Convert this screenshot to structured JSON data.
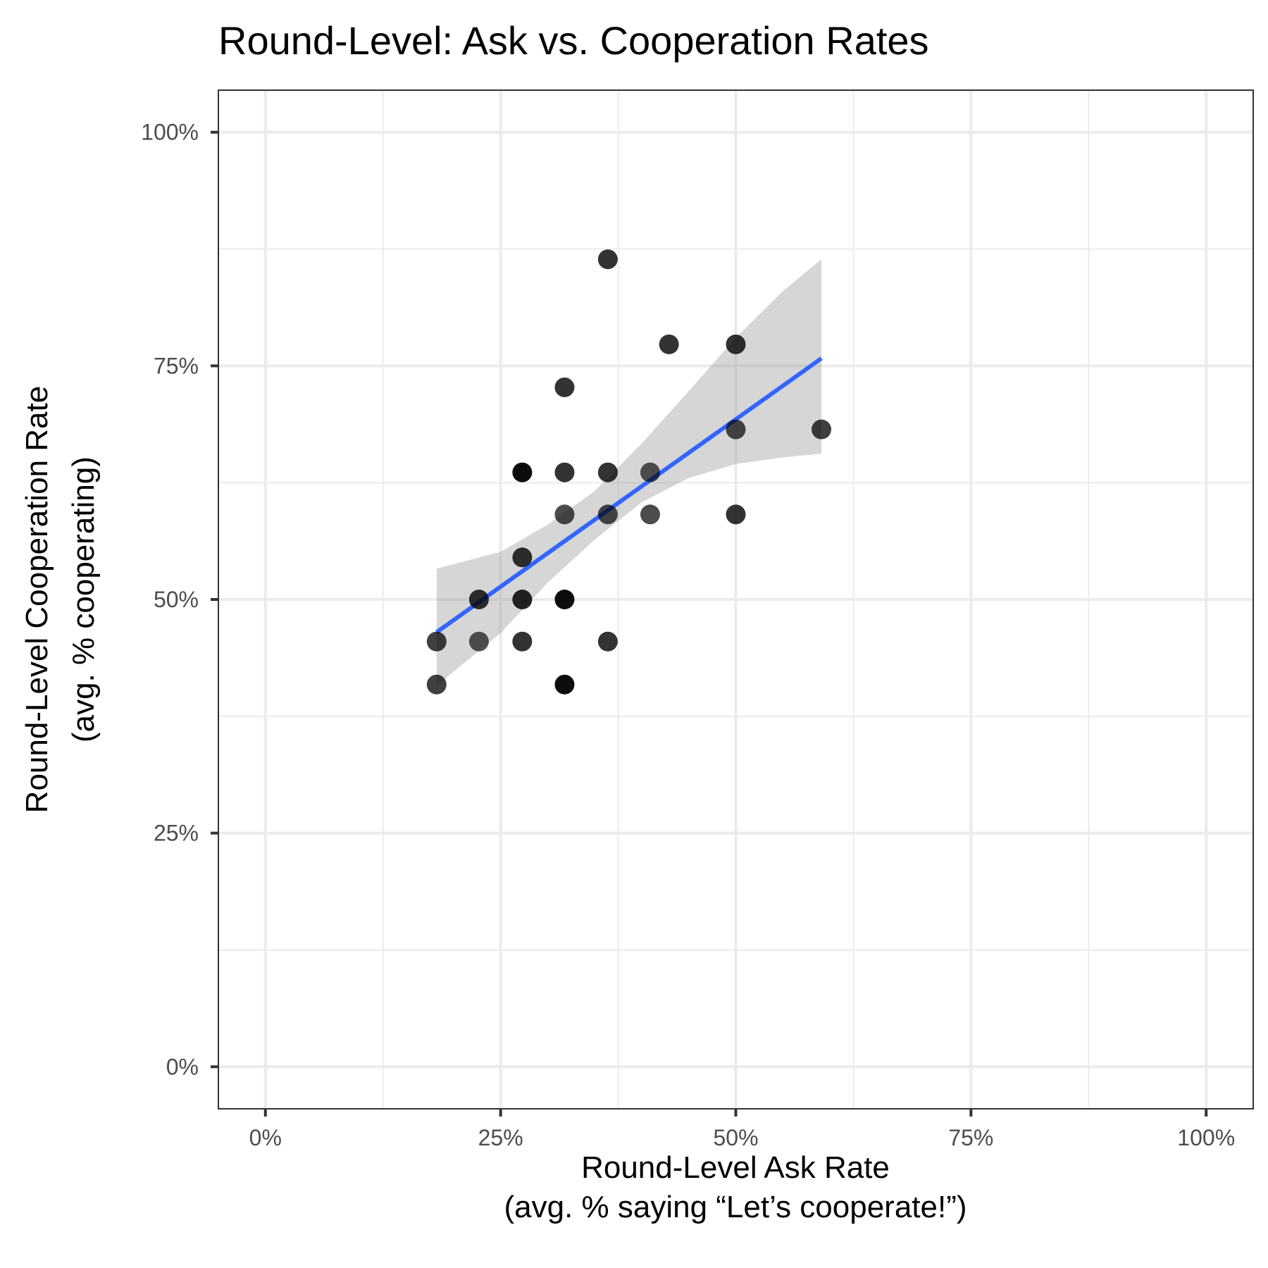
{
  "chart_data": {
    "type": "scatter",
    "title": "Round-Level: Ask vs. Cooperation Rates",
    "xlabel": [
      "Round-Level Ask Rate",
      "(avg. % saying “Let’s cooperate!”)"
    ],
    "ylabel": [
      "Round-Level Cooperation Rate",
      "(avg. % cooperating)"
    ],
    "xlim": [
      -0.05,
      1.05
    ],
    "ylim": [
      -0.045,
      1.045
    ],
    "x_ticks": [
      0,
      0.25,
      0.5,
      0.75,
      1
    ],
    "x_tick_labels": [
      "0%",
      "25%",
      "50%",
      "75%",
      "100%"
    ],
    "y_ticks": [
      0,
      0.25,
      0.5,
      0.75,
      1
    ],
    "y_tick_labels": [
      "0%",
      "25%",
      "50%",
      "75%",
      "100%"
    ],
    "grid": true,
    "legend": "none",
    "points": [
      {
        "x": 0.182,
        "y": 0.455,
        "opacity": 0.75
      },
      {
        "x": 0.182,
        "y": 0.409,
        "opacity": 0.75
      },
      {
        "x": 0.227,
        "y": 0.5,
        "opacity": 0.8
      },
      {
        "x": 0.227,
        "y": 0.455,
        "opacity": 0.65
      },
      {
        "x": 0.273,
        "y": 0.636,
        "opacity": 0.95
      },
      {
        "x": 0.273,
        "y": 0.545,
        "opacity": 0.8
      },
      {
        "x": 0.273,
        "y": 0.5,
        "opacity": 0.85
      },
      {
        "x": 0.273,
        "y": 0.455,
        "opacity": 0.8
      },
      {
        "x": 0.318,
        "y": 0.727,
        "opacity": 0.8
      },
      {
        "x": 0.318,
        "y": 0.636,
        "opacity": 0.8
      },
      {
        "x": 0.318,
        "y": 0.591,
        "opacity": 0.7
      },
      {
        "x": 0.318,
        "y": 0.5,
        "opacity": 0.95
      },
      {
        "x": 0.318,
        "y": 0.409,
        "opacity": 0.95
      },
      {
        "x": 0.364,
        "y": 0.864,
        "opacity": 0.8
      },
      {
        "x": 0.364,
        "y": 0.636,
        "opacity": 0.8
      },
      {
        "x": 0.364,
        "y": 0.591,
        "opacity": 0.7
      },
      {
        "x": 0.364,
        "y": 0.455,
        "opacity": 0.8
      },
      {
        "x": 0.409,
        "y": 0.636,
        "opacity": 0.65
      },
      {
        "x": 0.409,
        "y": 0.591,
        "opacity": 0.7
      },
      {
        "x": 0.429,
        "y": 0.773,
        "opacity": 0.8
      },
      {
        "x": 0.5,
        "y": 0.773,
        "opacity": 0.8
      },
      {
        "x": 0.5,
        "y": 0.682,
        "opacity": 0.7
      },
      {
        "x": 0.5,
        "y": 0.591,
        "opacity": 0.8
      },
      {
        "x": 0.591,
        "y": 0.682,
        "opacity": 0.75
      }
    ],
    "fit_line": {
      "method": "linear regression",
      "x": [
        0.182,
        0.591
      ],
      "y": [
        0.465,
        0.758
      ],
      "color": "#3366FF"
    },
    "confidence_band": {
      "x": [
        0.182,
        0.25,
        0.3,
        0.35,
        0.4,
        0.45,
        0.5,
        0.55,
        0.591
      ],
      "upper": [
        0.533,
        0.551,
        0.58,
        0.616,
        0.667,
        0.723,
        0.78,
        0.83,
        0.864
      ],
      "lower": [
        0.408,
        0.464,
        0.518,
        0.564,
        0.604,
        0.63,
        0.645,
        0.652,
        0.656
      ],
      "color": "#999999",
      "opacity": 0.4
    },
    "colors": {
      "point": "#000000",
      "fit_line": "#3366FF",
      "band": "#999999",
      "grid": "#EBEBEB",
      "panel_border": "#333333"
    }
  }
}
